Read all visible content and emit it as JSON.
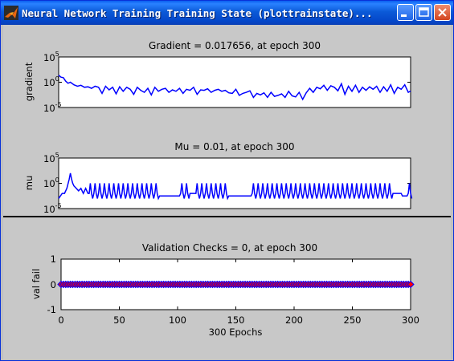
{
  "window": {
    "title": "Neural Network Training Training State (plottrainstate)...",
    "minimize_icon": "minimize-icon",
    "maximize_icon": "maximize-icon",
    "close_icon": "close-icon"
  },
  "chart_data": [
    {
      "type": "line",
      "title": "Gradient = 0.017656, at epoch 300",
      "ylabel": "gradient",
      "yscale": "log",
      "ylim_exponents": [
        -5,
        5
      ],
      "yticks": [
        "10",
        "10",
        "10"
      ],
      "ytick_exponents": [
        "-5",
        "0",
        "5"
      ],
      "xlim": [
        0,
        300
      ],
      "color": "#0000ff",
      "series": [
        {
          "x": [
            0,
            2,
            4,
            6,
            8,
            10,
            13,
            16,
            19,
            22,
            25,
            28,
            31,
            34,
            37,
            40,
            43,
            46,
            49,
            52,
            55,
            58,
            61,
            64,
            67,
            70,
            73,
            76,
            79,
            82,
            85,
            88,
            91,
            94,
            97,
            100,
            103,
            106,
            109,
            112,
            115,
            118,
            121,
            124,
            127,
            130,
            133,
            136,
            139,
            142,
            145,
            148,
            151,
            154,
            157,
            160,
            163,
            166,
            169,
            172,
            175,
            178,
            181,
            184,
            187,
            190,
            193,
            196,
            199,
            202,
            205,
            208,
            211,
            214,
            217,
            220,
            223,
            226,
            229,
            232,
            235,
            238,
            241,
            244,
            247,
            250,
            253,
            256,
            259,
            262,
            265,
            268,
            271,
            274,
            277,
            280,
            283,
            286,
            289,
            292,
            295,
            298,
            300
          ],
          "y_log10": [
            1.4,
            1.0,
            0.9,
            0.2,
            -0.2,
            0.0,
            -0.5,
            -0.8,
            -0.6,
            -1.0,
            -0.9,
            -1.2,
            -0.8,
            -1.0,
            -2.2,
            -0.8,
            -1.5,
            -1.0,
            -2.3,
            -0.9,
            -1.8,
            -1.0,
            -1.4,
            -2.4,
            -1.0,
            -1.6,
            -2.0,
            -1.2,
            -2.5,
            -1.0,
            -1.8,
            -1.4,
            -1.2,
            -2.0,
            -1.5,
            -1.8,
            -1.2,
            -2.2,
            -1.4,
            -1.6,
            -1.0,
            -2.4,
            -1.5,
            -1.6,
            -1.3,
            -2.0,
            -1.6,
            -1.4,
            -1.8,
            -1.6,
            -2.1,
            -2.2,
            -1.4,
            -2.6,
            -2.2,
            -2.0,
            -1.7,
            -3.0,
            -2.2,
            -2.5,
            -2.1,
            -3.0,
            -2.0,
            -2.8,
            -2.6,
            -2.3,
            -3.0,
            -1.8,
            -2.7,
            -2.9,
            -2.0,
            -3.4,
            -2.1,
            -1.2,
            -2.0,
            -1.0,
            -1.3,
            -0.6,
            -1.6,
            -0.7,
            -1.0,
            -1.7,
            -0.3,
            -2.4,
            -0.8,
            -1.8,
            -0.6,
            -2.0,
            -1.0,
            -1.6,
            -0.9,
            -1.4,
            -0.8,
            -2.0,
            -0.9,
            -1.8,
            -0.5,
            -2.2,
            -1.0,
            -1.4,
            -0.5,
            -2.0,
            -1.75
          ]
        }
      ]
    },
    {
      "type": "line",
      "title": "Mu = 0.01, at epoch 300",
      "ylabel": "mu",
      "yscale": "log",
      "ylim_exponents": [
        -5,
        5
      ],
      "yticks": [
        "10",
        "10",
        "10"
      ],
      "ytick_exponents": [
        "-5",
        "0",
        "5"
      ],
      "xlim": [
        0,
        300
      ],
      "color": "#0000ff",
      "pattern": {
        "start": [
          [
            0,
            -3
          ],
          [
            3,
            -2
          ],
          [
            5,
            -2
          ],
          [
            7,
            -1
          ],
          [
            9,
            0.8
          ],
          [
            10,
            2.0
          ],
          [
            11,
            0.8
          ],
          [
            12,
            0
          ],
          [
            13,
            -0.5
          ],
          [
            15,
            -1
          ],
          [
            17,
            -1.5
          ],
          [
            19,
            -1
          ],
          [
            21,
            -2
          ],
          [
            23,
            -1
          ],
          [
            25,
            -2
          ]
        ],
        "base": -2,
        "peak_low": -3,
        "peak_high": 0
      }
    },
    {
      "type": "scatter",
      "title": "Validation Checks = 0, at epoch 300",
      "ylabel": "val fail",
      "xlabel": "300 Epochs",
      "xlim": [
        0,
        300
      ],
      "ylim": [
        -1,
        1
      ],
      "yticks": [
        "-1",
        "0",
        "1"
      ],
      "xticks": [
        "0",
        "50",
        "100",
        "150",
        "200",
        "250",
        "300"
      ],
      "xtick_values": [
        0,
        50,
        100,
        150,
        200,
        250,
        300
      ],
      "marker_color": "#ff0000",
      "marker_edge": "#0000ff",
      "x_range": [
        0,
        300
      ],
      "x_step": 2,
      "y_value": 0
    }
  ]
}
